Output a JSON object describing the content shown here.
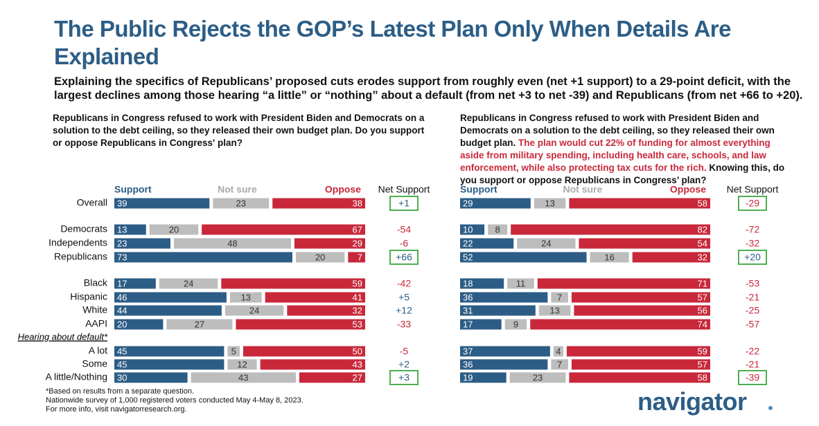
{
  "title": "The Public Rejects the GOP’s Latest Plan Only When Details Are Explained",
  "subtitle": "Explaining the specifics of Republicans’ proposed cuts erodes support from roughly even (net +1 support) to a 29-point deficit, with the largest declines among those hearing “a little” or “nothing” about a default (from net +3 to net -39) and Republicans (from net +66 to +20).",
  "chart_data": [
    {
      "type": "bar",
      "stacked": true,
      "orientation": "horizontal",
      "question_parts": [
        {
          "text": "Republicans in Congress refused to work with President Biden and Democrats on a solution to the debt ceiling, so they released their own budget plan. Do you support or oppose Republicans in Congress' plan?",
          "color": "#111111"
        }
      ],
      "categories": [
        "Overall",
        "Democrats",
        "Independents",
        "Republicans",
        "Black",
        "Hispanic",
        "White",
        "AAPI",
        "A lot",
        "Some",
        "A little/Nothing"
      ],
      "subgroup_label": "Hearing about default*",
      "series": [
        {
          "name": "Support",
          "color": "#2c5d86",
          "values": [
            39,
            13,
            23,
            73,
            17,
            46,
            44,
            20,
            45,
            45,
            30
          ]
        },
        {
          "name": "Not sure",
          "color": "#bdbdbd",
          "values": [
            23,
            20,
            48,
            20,
            24,
            13,
            24,
            27,
            5,
            12,
            43
          ]
        },
        {
          "name": "Oppose",
          "color": "#c8283a",
          "values": [
            38,
            67,
            29,
            7,
            59,
            41,
            32,
            53,
            50,
            43,
            27
          ]
        }
      ],
      "net": {
        "name": "Net Support",
        "values": [
          1,
          -54,
          -6,
          66,
          -42,
          5,
          12,
          -33,
          -5,
          2,
          3
        ],
        "value_labels": [
          "+1",
          "-54",
          "-6",
          "+66",
          "-42",
          "+5",
          "+12",
          "-33",
          "-5",
          "+2",
          "+3"
        ]
      },
      "boxed": [
        0,
        3,
        10
      ]
    },
    {
      "type": "bar",
      "stacked": true,
      "orientation": "horizontal",
      "question_parts": [
        {
          "text": "Republicans in Congress refused to work with President Biden and Democrats on a solution to the debt ceiling, so they released their own budget plan. ",
          "color": "#111111"
        },
        {
          "text": "The plan would cut 22% of funding for almost everything aside from military spending, including health care, schools, and law enforcement, while also protecting tax cuts for the rich.",
          "color": "#c8283a"
        },
        {
          "text": " Knowing this, do you support or oppose Republicans in Congress’ plan?",
          "color": "#111111"
        }
      ],
      "series": [
        {
          "name": "Support",
          "color": "#2c5d86",
          "values": [
            29,
            10,
            22,
            52,
            18,
            36,
            31,
            17,
            37,
            36,
            19
          ]
        },
        {
          "name": "Not sure",
          "color": "#bdbdbd",
          "values": [
            13,
            8,
            24,
            16,
            11,
            7,
            13,
            9,
            4,
            7,
            23
          ]
        },
        {
          "name": "Oppose",
          "color": "#c8283a",
          "values": [
            58,
            82,
            54,
            32,
            71,
            57,
            56,
            74,
            59,
            57,
            58
          ]
        }
      ],
      "net": {
        "name": "Net Support",
        "values": [
          -29,
          -72,
          -32,
          20,
          -53,
          -21,
          -25,
          -57,
          -22,
          -21,
          -39
        ],
        "value_labels": [
          "-29",
          "-72",
          "-32",
          "+20",
          "-53",
          "-21",
          "-25",
          "-57",
          "-22",
          "-21",
          "-39"
        ]
      },
      "boxed": [
        0,
        3,
        10
      ]
    }
  ],
  "footnotes": [
    "*Based on results from a separate question.",
    "Nationwide survey of 1,000 registered voters conducted May 4-May 8, 2023.",
    "For more info, visit navigatorresearch.org."
  ],
  "brand": "navigator"
}
